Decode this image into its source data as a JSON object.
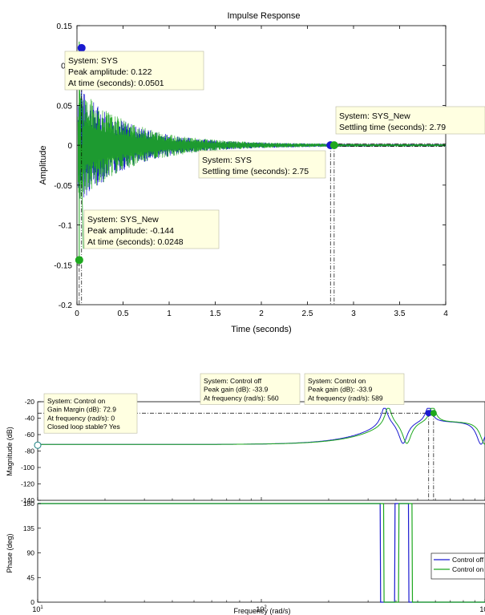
{
  "colors": {
    "sys": "#1a1ad0",
    "sys_new": "#1ea81e",
    "tip_bg": "#ffffe1"
  },
  "chart_data": [
    {
      "type": "line",
      "title": "Impulse Response",
      "xlabel": "Time (seconds)",
      "ylabel": "Amplitude",
      "xlim": [
        0,
        4
      ],
      "ylim": [
        -0.2,
        0.15
      ],
      "xticks": [
        0,
        0.5,
        1,
        1.5,
        2,
        2.5,
        3,
        3.5,
        4
      ],
      "xtick_labels": [
        "0",
        "0.5",
        "1",
        "1.5",
        "2",
        "2.5",
        "3",
        "3.5",
        "4"
      ],
      "yticks": [
        0.15,
        0.1,
        0.05,
        0,
        -0.05,
        -0.1,
        -0.15,
        -0.2
      ],
      "ytick_labels": [
        "0.15",
        "0.1",
        "0.05",
        "0",
        "-0.05",
        "-0.1",
        "-0.15",
        "-0.2"
      ],
      "series": [
        {
          "name": "SYS",
          "color": "#1a1ad0",
          "decay_tau": 0.55
        },
        {
          "name": "SYS_New",
          "color": "#1ea81e",
          "decay_tau": 0.57
        }
      ],
      "markers": [
        {
          "series": "SYS",
          "x": 0.0501,
          "y": 0.122
        },
        {
          "series": "SYS_New",
          "x": 0.0248,
          "y": -0.144
        },
        {
          "series": "SYS",
          "x": 2.75,
          "y": 0
        },
        {
          "series": "SYS_New",
          "x": 2.79,
          "y": 0
        }
      ],
      "datatips": [
        {
          "lines": [
            "System: SYS",
            "Peak amplitude: 0.122",
            "At time (seconds): 0.0501"
          ]
        },
        {
          "lines": [
            "System: SYS_New",
            "Peak amplitude: -0.144",
            "At time (seconds): 0.0248"
          ]
        },
        {
          "lines": [
            "System: SYS",
            "Settling time (seconds): 2.75"
          ]
        },
        {
          "lines": [
            "System: SYS_New",
            "Settling time (seconds): 2.79"
          ]
        }
      ]
    },
    {
      "type": "line",
      "title": "",
      "xlabel": "Frequency  (rad/s)",
      "xscale": "log",
      "xlim": [
        10,
        1000
      ],
      "xticks": [
        10,
        100,
        1000
      ],
      "panels": [
        {
          "ylabel": "Magnitude (dB)",
          "ylim": [
            -140,
            -20
          ],
          "yticks": [
            -20,
            -40,
            -60,
            -80,
            -100,
            -120,
            -140
          ],
          "ytick_labels": [
            "-20",
            "-40",
            "-60",
            "-80",
            "-100",
            "-120",
            "-140"
          ]
        },
        {
          "ylabel": "Phase (deg)",
          "ylim": [
            0,
            180
          ],
          "yticks": [
            180,
            135,
            90,
            45,
            0
          ],
          "ytick_labels": [
            "180",
            "135",
            "90",
            "45",
            "0"
          ]
        }
      ],
      "series": [
        {
          "name": "Control off",
          "color": "#1a1ad0"
        },
        {
          "name": "Control on",
          "color": "#1ea81e"
        }
      ],
      "legend": {
        "position": "right",
        "entries": [
          "Control off",
          "Control on"
        ]
      },
      "markers": [
        {
          "series": "Control on",
          "x": 10,
          "y": -72.9
        },
        {
          "series": "Control off",
          "x": 560,
          "y": -33.9
        },
        {
          "series": "Control on",
          "x": 589,
          "y": -33.9
        }
      ],
      "datatips": [
        {
          "lines": [
            "System: Control on",
            "Gain Margin (dB): 72.9",
            "At frequency (rad/s): 0",
            "Closed loop stable? Yes"
          ]
        },
        {
          "lines": [
            "System: Control off",
            "Peak gain (dB): -33.9",
            "At frequency (rad/s): 560"
          ]
        },
        {
          "lines": [
            "System: Control on",
            "Peak gain (dB): -33.9",
            "At frequency (rad/s): 589"
          ]
        }
      ]
    }
  ]
}
